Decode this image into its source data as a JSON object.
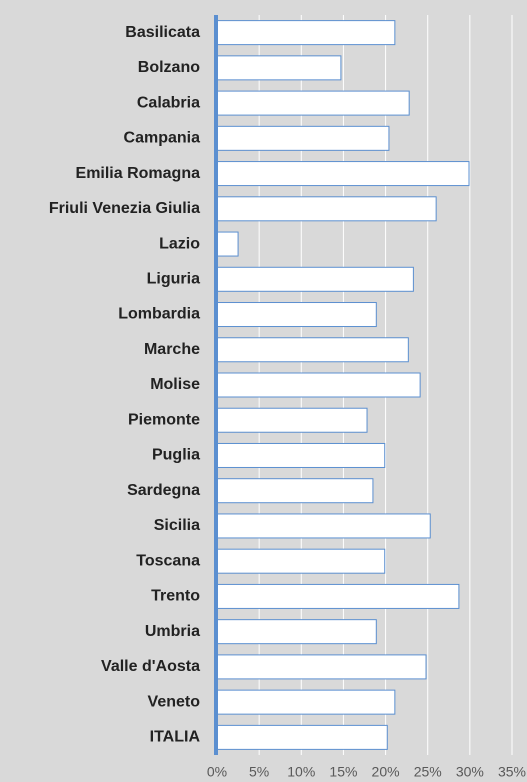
{
  "chart_data": {
    "type": "bar",
    "orientation": "horizontal",
    "categories": [
      "Basilicata",
      "Bolzano",
      "Calabria",
      "Campania",
      "Emilia Romagna",
      "Friuli Venezia Giulia",
      "Lazio",
      "Liguria",
      "Lombardia",
      "Marche",
      "Molise",
      "Piemonte",
      "Puglia",
      "Sardegna",
      "Sicilia",
      "Toscana",
      "Trento",
      "Umbria",
      "Valle d'Aosta",
      "Veneto",
      "ITALIA"
    ],
    "values": [
      21.1,
      14.7,
      22.8,
      20.4,
      29.9,
      26.0,
      2.5,
      23.3,
      18.9,
      22.7,
      24.1,
      17.8,
      19.9,
      18.5,
      25.3,
      19.9,
      28.7,
      18.9,
      24.8,
      21.1,
      20.2
    ],
    "color": "#ffffff",
    "edge_color": "#5b8fd0",
    "xlim": [
      0,
      35
    ],
    "xticks": [
      {
        "value": 0,
        "label": "0%"
      },
      {
        "value": 5,
        "label": "5%"
      },
      {
        "value": 10,
        "label": "10%"
      },
      {
        "value": 15,
        "label": "15%"
      },
      {
        "value": 20,
        "label": "20%"
      },
      {
        "value": 25,
        "label": "25%"
      },
      {
        "value": 30,
        "label": "30%"
      },
      {
        "value": 35,
        "label": "35%"
      }
    ],
    "grid": true
  }
}
